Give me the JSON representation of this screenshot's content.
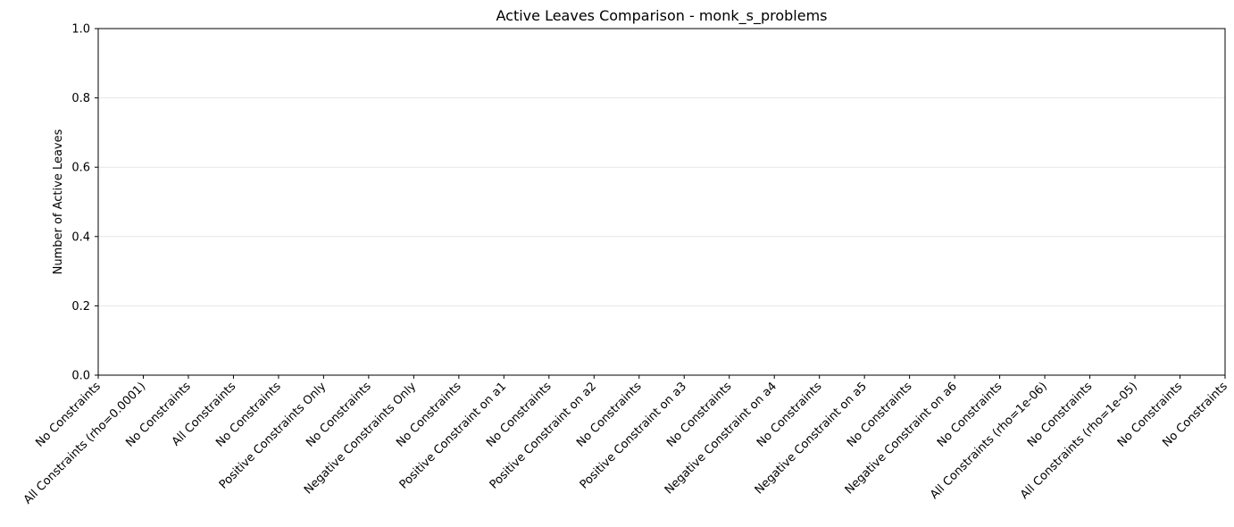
{
  "chart_data": {
    "type": "bar",
    "title": "Active Leaves Comparison - monk_s_problems",
    "xlabel": "",
    "ylabel": "Number of Active Leaves",
    "ylim": [
      0,
      1
    ],
    "yticks": [
      "0.0",
      "0.2",
      "0.4",
      "0.6",
      "0.8",
      "1.0"
    ],
    "grid": "y",
    "categories": [
      "No Constraints",
      "All Constraints (rho=0.0001)",
      "No Constraints",
      "All Constraints",
      "No Constraints",
      "Positive Constraints Only",
      "No Constraints",
      "Negative Constraints Only",
      "No Constraints",
      "Positive Constraint on a1",
      "No Constraints",
      "Positive Constraint on a2",
      "No Constraints",
      "Positive Constraint on a3",
      "No Constraints",
      "Negative Constraint on a4",
      "No Constraints",
      "Negative Constraint on a5",
      "No Constraints",
      "Negative Constraint on a6",
      "No Constraints",
      "All Constraints (rho=1e-06)",
      "No Constraints",
      "All Constraints (rho=1e-05)",
      "No Constraints",
      "No Constraints"
    ],
    "values": [
      0,
      0,
      0,
      0,
      0,
      0,
      0,
      0,
      0,
      0,
      0,
      0,
      0,
      0,
      0,
      0,
      0,
      0,
      0,
      0,
      0,
      0,
      0,
      0,
      0,
      0
    ],
    "colors": {
      "axis": "#000000",
      "grid": "#e6e6e6",
      "bar": "#1f77b4"
    }
  }
}
